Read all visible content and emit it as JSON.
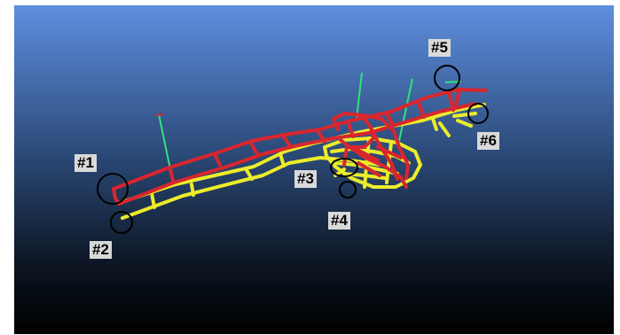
{
  "scene": {
    "background_top": "#5f8fe0",
    "background_bottom": "#000000",
    "frame_color_red": "#d8262e",
    "frame_color_yellow": "#ecec2a",
    "normal_vector_color": "#2fe27a"
  },
  "markers": [
    {
      "id": "1",
      "label": "#1"
    },
    {
      "id": "2",
      "label": "#2"
    },
    {
      "id": "3",
      "label": "#3"
    },
    {
      "id": "4",
      "label": "#4"
    },
    {
      "id": "5",
      "label": "#5"
    },
    {
      "id": "6",
      "label": "#6"
    }
  ]
}
